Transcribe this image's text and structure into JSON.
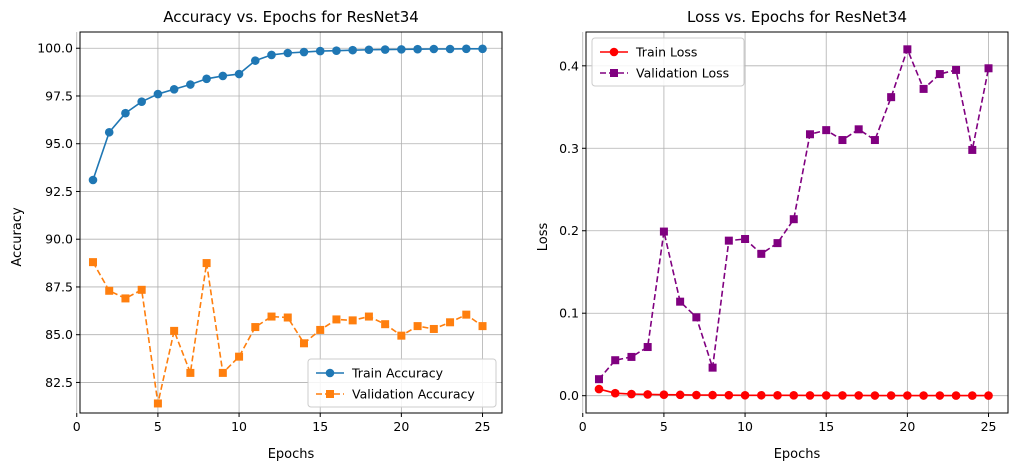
{
  "chart_data": [
    {
      "type": "line",
      "title": "Accuracy vs. Epochs for ResNet34",
      "xlabel": "Epochs",
      "ylabel": "Accuracy",
      "xlim": [
        0.2,
        26.2
      ],
      "ylim": [
        80.9,
        100.85
      ],
      "xticks": [
        0,
        5,
        10,
        15,
        20,
        25
      ],
      "yticks": [
        82.5,
        85.0,
        87.5,
        90.0,
        92.5,
        95.0,
        97.5,
        100.0
      ],
      "xtick_labels": [
        "0",
        "5",
        "10",
        "15",
        "20",
        "25"
      ],
      "ytick_labels": [
        "82.5",
        "85.0",
        "87.5",
        "90.0",
        "92.5",
        "95.0",
        "97.5",
        "100.0"
      ],
      "grid": true,
      "legend_position": "lower-right",
      "x": [
        1,
        2,
        3,
        4,
        5,
        6,
        7,
        8,
        9,
        10,
        11,
        12,
        13,
        14,
        15,
        16,
        17,
        18,
        19,
        20,
        21,
        22,
        23,
        24,
        25
      ],
      "series": [
        {
          "name": "Train Accuracy",
          "color": "#1f77b4",
          "linestyle": "solid",
          "marker": "circle",
          "values": [
            93.1,
            95.6,
            96.6,
            97.2,
            97.6,
            97.85,
            98.1,
            98.4,
            98.55,
            98.65,
            99.35,
            99.65,
            99.75,
            99.8,
            99.85,
            99.87,
            99.9,
            99.92,
            99.93,
            99.94,
            99.95,
            99.96,
            99.96,
            99.97,
            99.97
          ]
        },
        {
          "name": "Validation Accuracy",
          "color": "#ff7f0e",
          "linestyle": "dashed",
          "marker": "square",
          "values": [
            88.8,
            87.3,
            86.9,
            87.35,
            81.4,
            85.2,
            83.0,
            88.75,
            83.0,
            83.85,
            85.4,
            85.95,
            85.9,
            84.55,
            85.25,
            85.8,
            85.75,
            85.95,
            85.55,
            84.95,
            85.45,
            85.3,
            85.65,
            86.05,
            85.45
          ]
        }
      ]
    },
    {
      "type": "line",
      "title": "Loss vs. Epochs for ResNet34",
      "xlabel": "Epochs",
      "ylabel": "Loss",
      "xlim": [
        0.2,
        26.2
      ],
      "ylim": [
        -0.021,
        0.441
      ],
      "xticks": [
        0,
        5,
        10,
        15,
        20,
        25
      ],
      "yticks": [
        0.0,
        0.1,
        0.2,
        0.3,
        0.4
      ],
      "xtick_labels": [
        "0",
        "5",
        "10",
        "15",
        "20",
        "25"
      ],
      "ytick_labels": [
        "0.0",
        "0.1",
        "0.2",
        "0.3",
        "0.4"
      ],
      "grid": true,
      "legend_position": "upper-left",
      "x": [
        1,
        2,
        3,
        4,
        5,
        6,
        7,
        8,
        9,
        10,
        11,
        12,
        13,
        14,
        15,
        16,
        17,
        18,
        19,
        20,
        21,
        22,
        23,
        24,
        25
      ],
      "series": [
        {
          "name": "Train Loss",
          "color": "#ff0000",
          "linestyle": "solid",
          "marker": "circle",
          "values": [
            0.008,
            0.003,
            0.002,
            0.0015,
            0.0012,
            0.001,
            0.0008,
            0.0007,
            0.0006,
            0.0005,
            0.0005,
            0.0004,
            0.0004,
            0.0003,
            0.0003,
            0.0003,
            0.0003,
            0.0002,
            0.0002,
            0.0002,
            0.0002,
            0.0002,
            0.0001,
            0.0001,
            0.0001
          ]
        },
        {
          "name": "Validation Loss",
          "color": "#800080",
          "linestyle": "dashed",
          "marker": "square",
          "values": [
            0.02,
            0.043,
            0.047,
            0.059,
            0.199,
            0.114,
            0.095,
            0.034,
            0.188,
            0.19,
            0.172,
            0.185,
            0.214,
            0.317,
            0.322,
            0.31,
            0.323,
            0.31,
            0.362,
            0.42,
            0.372,
            0.39,
            0.395,
            0.298,
            0.397
          ]
        }
      ]
    }
  ]
}
